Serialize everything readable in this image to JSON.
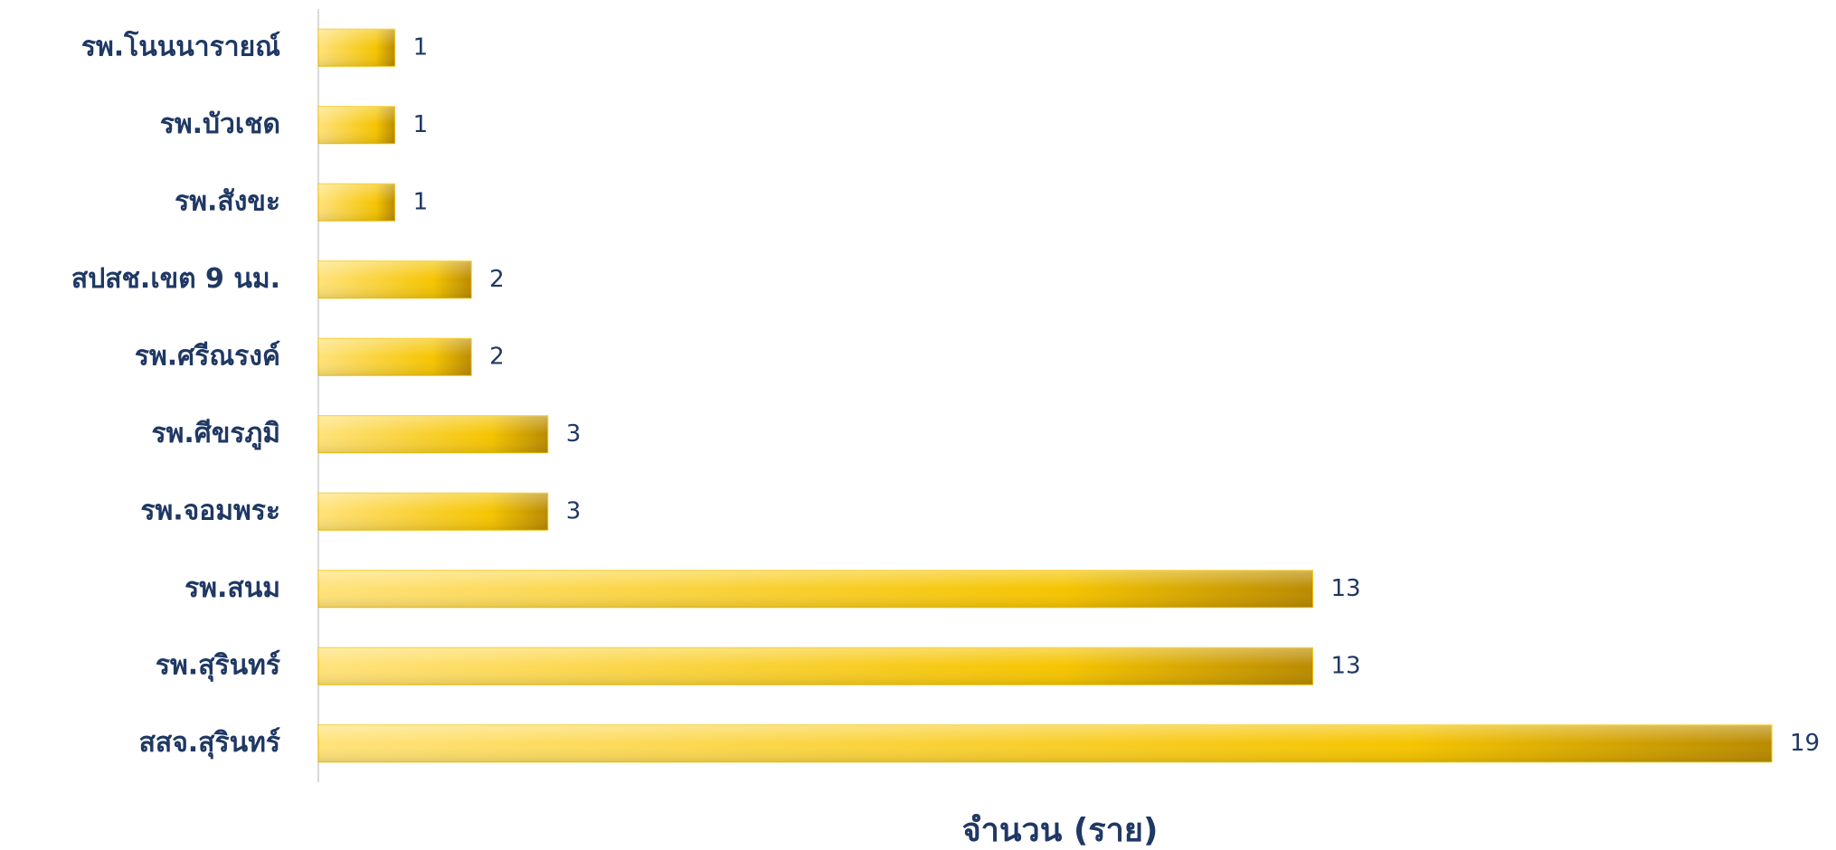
{
  "chart_data": {
    "type": "bar",
    "orientation": "horizontal",
    "x_axis_label": "จำนวน (ราย)",
    "categories": [
      "รพ.โนนนารายณ์",
      "รพ.บัวเชด",
      "รพ.สังขะ",
      "สปสช.เขต 9 นม.",
      "รพ.ศรีณรงค์",
      "รพ.ศีขรภูมิ",
      "รพ.จอมพระ",
      "รพ.สนม",
      "รพ.สุรินทร์",
      "สสจ.สุรินทร์"
    ],
    "values": [
      1,
      1,
      1,
      2,
      2,
      3,
      3,
      13,
      13,
      19
    ],
    "color": "#f5c400"
  }
}
